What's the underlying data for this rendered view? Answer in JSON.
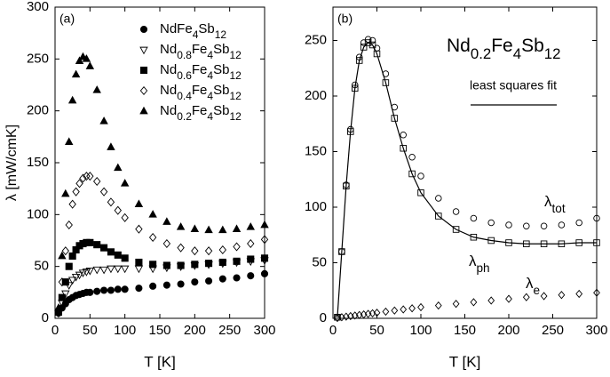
{
  "chart_data": [
    {
      "type": "scatter",
      "label": "(a)",
      "xlabel": "T [K]",
      "ylabel": "λ [mW/cmK]",
      "xlim": [
        0,
        300
      ],
      "ylim": [
        0,
        300
      ],
      "xticks": [
        0,
        50,
        100,
        150,
        200,
        250,
        300
      ],
      "yticks": [
        0,
        50,
        100,
        150,
        200,
        250,
        300
      ],
      "x": [
        5,
        10,
        15,
        20,
        25,
        30,
        35,
        40,
        45,
        50,
        60,
        70,
        80,
        90,
        100,
        120,
        140,
        160,
        180,
        200,
        220,
        240,
        260,
        280,
        300
      ],
      "series": [
        {
          "name": "NdFe4Sb12",
          "color": "#000000",
          "marker": "circle",
          "filled": true,
          "values": [
            5,
            10,
            14,
            18,
            20,
            22,
            23,
            24,
            25,
            25,
            26,
            27,
            27,
            28,
            28,
            29,
            31,
            32,
            33,
            35,
            36,
            38,
            39,
            41,
            43
          ]
        },
        {
          "name": "Nd0.8Fe4Sb12",
          "color": "#000000",
          "marker": "triangle-down",
          "filled": false,
          "values": [
            5,
            15,
            24,
            32,
            37,
            40,
            42,
            44,
            45,
            46,
            47,
            47,
            48,
            48,
            48,
            48,
            48,
            49,
            50,
            51,
            52,
            53,
            54,
            55,
            56
          ]
        },
        {
          "name": "Nd0.6Fe4Sb12",
          "color": "#000000",
          "marker": "square",
          "filled": true,
          "values": [
            6,
            20,
            35,
            50,
            60,
            66,
            70,
            72,
            73,
            73,
            71,
            68,
            64,
            61,
            58,
            54,
            52,
            51,
            51,
            52,
            53,
            54,
            55,
            57,
            58
          ]
        },
        {
          "name": "Nd0.4Fe4Sb12",
          "color": "#000000",
          "marker": "diamond",
          "filled": false,
          "values": [
            8,
            35,
            65,
            90,
            110,
            122,
            130,
            135,
            137,
            137,
            132,
            122,
            112,
            104,
            97,
            86,
            78,
            72,
            68,
            65,
            65,
            66,
            69,
            72,
            76
          ]
        },
        {
          "name": "Nd0.2Fe4Sb12",
          "color": "#000000",
          "marker": "triangle-up",
          "filled": true,
          "values": [
            10,
            60,
            120,
            170,
            210,
            235,
            248,
            252,
            250,
            243,
            220,
            190,
            165,
            145,
            130,
            110,
            100,
            93,
            88,
            86,
            85,
            85,
            86,
            88,
            90
          ]
        }
      ]
    },
    {
      "type": "scatter",
      "label": "(b)",
      "title": "Nd0.2Fe4Sb12",
      "xlabel": "T [K]",
      "xlim": [
        0,
        300
      ],
      "ylim": [
        0,
        280
      ],
      "xticks": [
        0,
        50,
        100,
        150,
        200,
        250,
        300
      ],
      "yticks": [
        0,
        50,
        100,
        150,
        200,
        250
      ],
      "x": [
        5,
        10,
        15,
        20,
        25,
        30,
        35,
        40,
        45,
        50,
        60,
        70,
        80,
        90,
        100,
        120,
        140,
        160,
        180,
        200,
        220,
        240,
        260,
        280,
        300
      ],
      "annotations": [
        "λtot",
        "λph",
        "λe"
      ],
      "series": [
        {
          "color": "#000000",
          "marker": "circle",
          "filled": false,
          "values": [
            1,
            60,
            120,
            170,
            210,
            235,
            248,
            251,
            250,
            243,
            220,
            190,
            165,
            145,
            128,
            108,
            96,
            90,
            86,
            84,
            83,
            83,
            84,
            86,
            90
          ]
        },
        {
          "color": "#000000",
          "marker": "square",
          "filled": false,
          "values": [
            1,
            60,
            119,
            168,
            207,
            232,
            244,
            248,
            246,
            238,
            212,
            180,
            153,
            130,
            113,
            92,
            80,
            73,
            70,
            68,
            67,
            67,
            67,
            68,
            68
          ]
        },
        {
          "color": "#000000",
          "marker": "diamond",
          "filled": false,
          "values": [
            0.3,
            1,
            1.5,
            2,
            2.5,
            3,
            3.5,
            4,
            4.5,
            5,
            6,
            7,
            8,
            9,
            10,
            11.5,
            13,
            14.5,
            16,
            17.5,
            19,
            20,
            21,
            22,
            23
          ]
        },
        {
          "name": "least squares fit",
          "color": "#000000",
          "marker": "line",
          "values": [
            1,
            60,
            119,
            168,
            207,
            232,
            244,
            248,
            246,
            238,
            212,
            180,
            153,
            130,
            113,
            92,
            80,
            73,
            70,
            68,
            67,
            67,
            67,
            68,
            68
          ]
        }
      ]
    }
  ]
}
